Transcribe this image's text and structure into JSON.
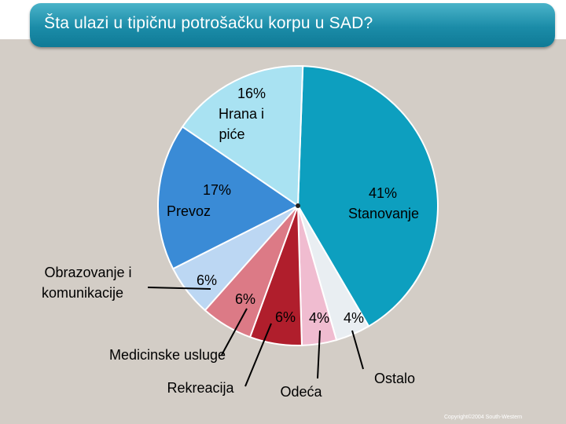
{
  "title": "Šta ulazi u tipičnu potrošačku korpu u SAD?",
  "copyright": "Copyright©2004  South-Western",
  "chart_data": {
    "type": "pie",
    "title": "Šta ulazi u tipičnu potrošačku korpu u SAD?",
    "slices": [
      {
        "label": "Stanovanje",
        "value": 41,
        "value_text": "41%",
        "color": "#0d9fbf"
      },
      {
        "label": "Ostalo",
        "value": 4,
        "value_text": "4%",
        "color": "#e9eef2"
      },
      {
        "label": "Odeća",
        "value": 4,
        "value_text": "4%",
        "color": "#f0bcd0"
      },
      {
        "label": "Rekreacija",
        "value": 6,
        "value_text": "6%",
        "color": "#b01e2c"
      },
      {
        "label": "Medicinske usluge",
        "value": 6,
        "value_text": "6%",
        "color": "#dc7a86"
      },
      {
        "label": "Obrazovanje i komunikacije",
        "value": 6,
        "value_text": "6%",
        "color": "#bcd7f3"
      },
      {
        "label": "Prevoz",
        "value": 17,
        "value_text": "17%",
        "color": "#3a8bd6"
      },
      {
        "label": "Hrana i piće",
        "value": 16,
        "value_text": "16%",
        "color": "#a9e2f2"
      }
    ]
  }
}
